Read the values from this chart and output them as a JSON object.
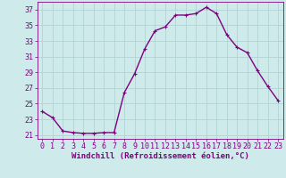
{
  "x": [
    0,
    1,
    2,
    3,
    4,
    5,
    6,
    7,
    8,
    9,
    10,
    11,
    12,
    13,
    14,
    15,
    16,
    17,
    18,
    19,
    20,
    21,
    22,
    23
  ],
  "y": [
    24.0,
    23.2,
    21.5,
    21.3,
    21.2,
    21.2,
    21.3,
    21.3,
    26.4,
    28.8,
    32.0,
    34.3,
    34.8,
    36.3,
    36.3,
    36.5,
    37.3,
    36.5,
    33.8,
    32.2,
    31.5,
    29.2,
    27.2,
    25.4
  ],
  "line_color": "#800080",
  "marker": "+",
  "marker_size": 3,
  "bg_color": "#ceeaea",
  "grid_color": "#aed0d0",
  "xlabel": "Windchill (Refroidissement éolien,°C)",
  "ylim": [
    20.5,
    38
  ],
  "yticks": [
    21,
    23,
    25,
    27,
    29,
    31,
    33,
    35,
    37
  ],
  "line_width": 1.0,
  "xlabel_fontsize": 6.5,
  "tick_fontsize": 6.0
}
